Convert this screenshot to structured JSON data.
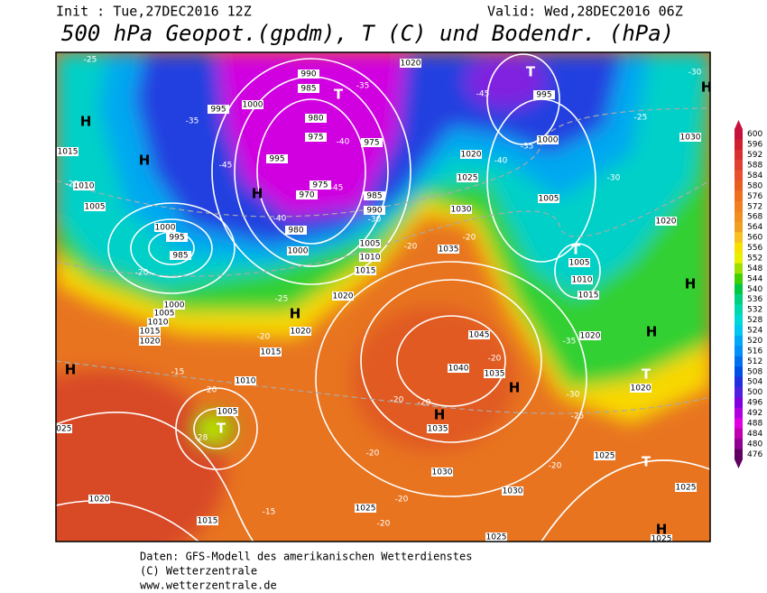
{
  "header": {
    "init": "Init : Tue,27DEC2016 12Z",
    "valid": "Valid: Wed,28DEC2016 06Z",
    "title": "500 hPa Geopot.(gpdm), T (C) und Bodendr. (hPa)"
  },
  "colorbar": {
    "labels": [
      600,
      596,
      592,
      588,
      584,
      580,
      576,
      572,
      568,
      564,
      560,
      556,
      552,
      548,
      544,
      540,
      536,
      532,
      528,
      524,
      520,
      516,
      512,
      508,
      504,
      500,
      496,
      492,
      488,
      484,
      480,
      476
    ],
    "colors": [
      "#c8103c",
      "#d02030",
      "#d83030",
      "#e04030",
      "#e85030",
      "#e86020",
      "#f07020",
      "#f08020",
      "#f09020",
      "#f0a020",
      "#f8c020",
      "#f8e000",
      "#e8f000",
      "#a0e000",
      "#40d000",
      "#00c840",
      "#00d080",
      "#00d8b0",
      "#00d8d8",
      "#00c8f0",
      "#00a8f8",
      "#0090f8",
      "#0070f0",
      "#0050e8",
      "#2030e0",
      "#5020e0",
      "#8000e0",
      "#b000e0",
      "#e000e0",
      "#c000b0",
      "#900090",
      "#600060"
    ]
  },
  "map": {
    "pressure_centers": [
      "H",
      "H",
      "H",
      "T",
      "T",
      "H",
      "H",
      "H",
      "H",
      "T",
      "T",
      "H",
      "H",
      "H",
      "H",
      "T",
      "T"
    ],
    "isobar_labels": [
      1020,
      990,
      985,
      1000,
      995,
      980,
      975,
      975,
      995,
      975,
      970,
      985,
      990,
      980,
      1005,
      1010,
      1015,
      1020,
      1000,
      995,
      1000,
      1005,
      1020,
      1025,
      1030,
      1035,
      1005,
      1010,
      1015,
      1020,
      1020,
      1030,
      1020,
      1015,
      1010,
      1005,
      1000,
      995,
      985,
      1000,
      1005,
      1010,
      1015,
      1020,
      1015,
      1010,
      1005,
      1020,
      1045,
      1040,
      1035,
      1035,
      1030,
      1030,
      1025,
      1025,
      1025,
      1025,
      1025,
      1025,
      1020,
      1015
    ],
    "temperature_labels": [
      -25,
      -35,
      -45,
      -25,
      -20,
      -25,
      -20,
      -15,
      -20,
      -28,
      -20,
      -20,
      -15,
      -20,
      -20,
      -25,
      -30,
      -35,
      -20,
      -20,
      -20,
      -30,
      -40,
      -45,
      -40,
      -35,
      -35,
      -40,
      -45,
      -30,
      -25,
      -30,
      -20,
      -20
    ]
  },
  "footer": [
    "Daten: GFS-Modell des amerikanischen Wetterdienstes",
    "(C) Wetterzentrale",
    "www.wetterzentrale.de"
  ]
}
